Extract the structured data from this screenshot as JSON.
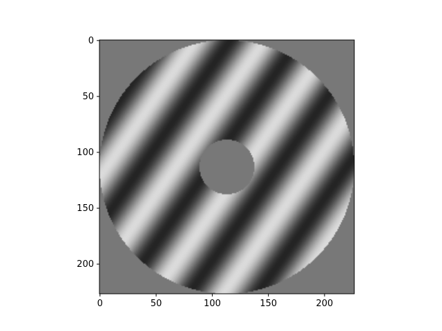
{
  "chart_data": {
    "type": "heatmap",
    "title": "",
    "xlabel": "",
    "ylabel": "",
    "image_size": [
      227,
      227
    ],
    "xlim": [
      -0.5,
      226.5
    ],
    "ylim": [
      226.5,
      -0.5
    ],
    "x_ticks": [
      0,
      50,
      100,
      150,
      200
    ],
    "y_ticks": [
      0,
      50,
      100,
      150,
      200
    ],
    "x_tick_labels": [
      "0",
      "50",
      "100",
      "150",
      "200"
    ],
    "y_tick_labels": [
      "0",
      "50",
      "100",
      "150",
      "200"
    ],
    "colormap": "gray",
    "background_value": 0.47,
    "annulus": {
      "center": [
        113,
        113
      ],
      "outer_radius": 113.5,
      "inner_radius": 24.5
    },
    "grating": {
      "orientation_deg": 35,
      "period_px": 50,
      "contrast": 0.72
    },
    "grid": false,
    "legend": "none"
  }
}
